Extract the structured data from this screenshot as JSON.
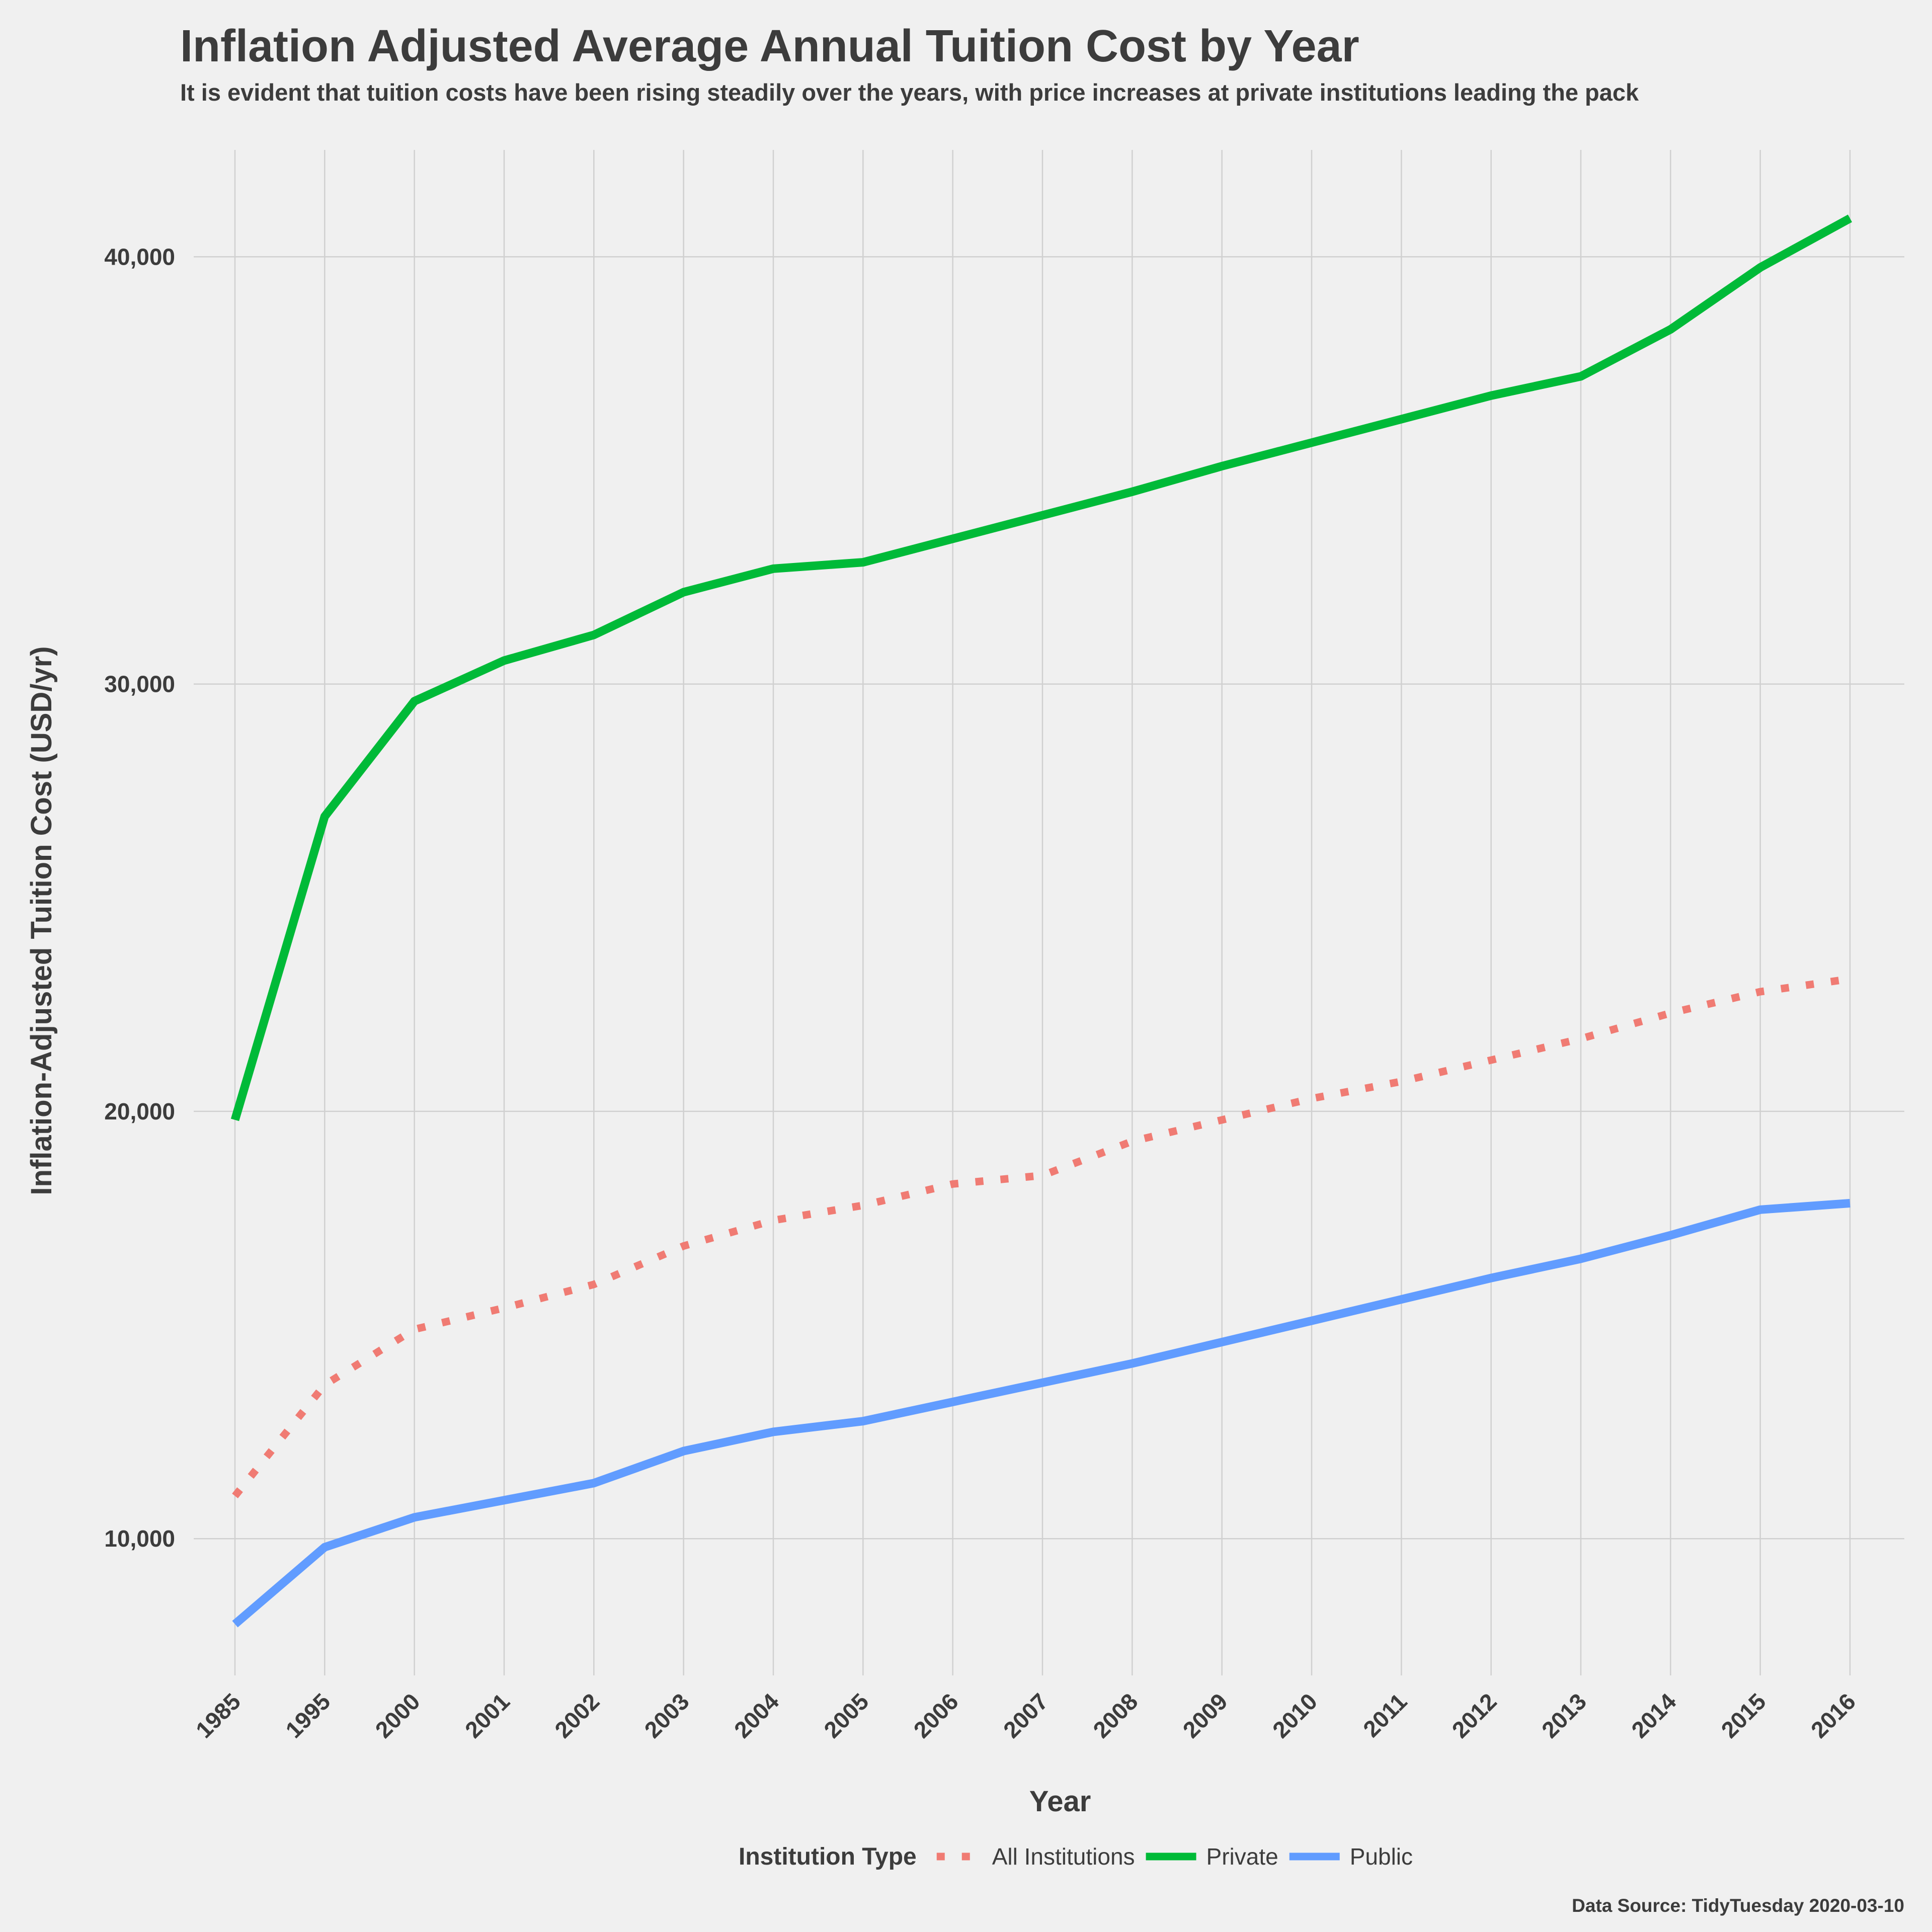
{
  "chart_data": {
    "type": "line",
    "title": "Inflation Adjusted Average Annual Tuition Cost by Year",
    "subtitle": "It is evident that tuition costs have been rising steadily over the years, with price increases at private institutions leading the pack",
    "xlabel": "Year",
    "ylabel": "Inflation-Adjusted Tuition Cost (USD/yr)",
    "categories": [
      "1985",
      "1995",
      "2000",
      "2001",
      "2002",
      "2003",
      "2004",
      "2005",
      "2006",
      "2007",
      "2008",
      "2009",
      "2010",
      "2011",
      "2012",
      "2013",
      "2014",
      "2015",
      "2016"
    ],
    "yticks": [
      10000,
      20000,
      30000,
      40000
    ],
    "ytick_labels": [
      "10,000",
      "20,000",
      "30,000",
      "40,000"
    ],
    "ylim": [
      6800,
      42500
    ],
    "grid": true,
    "legend": {
      "title": "Institution Type",
      "position": "bottom"
    },
    "series": [
      {
        "name": "All Institutions",
        "color": "#f07b73",
        "style": "dotted",
        "values": [
          11000,
          13600,
          14900,
          15400,
          15950,
          16850,
          17450,
          17800,
          18300,
          18500,
          19300,
          19800,
          20300,
          20700,
          21200,
          21700,
          22300,
          22800,
          23100
        ]
      },
      {
        "name": "Private",
        "color": "#00ba38",
        "style": "solid",
        "values": [
          19800,
          26900,
          29600,
          30550,
          31150,
          32150,
          32700,
          32850,
          33400,
          33950,
          34500,
          35100,
          35650,
          36200,
          36750,
          37200,
          38300,
          39750,
          40900
        ]
      },
      {
        "name": "Public",
        "color": "#619cff",
        "style": "solid",
        "values": [
          8000,
          9800,
          10500,
          10900,
          11300,
          12050,
          12500,
          12750,
          13200,
          13650,
          14100,
          14600,
          15100,
          15600,
          16100,
          16550,
          17100,
          17700,
          17850
        ]
      }
    ]
  },
  "caption": "Data Source: TidyTuesday 2020-03-10"
}
